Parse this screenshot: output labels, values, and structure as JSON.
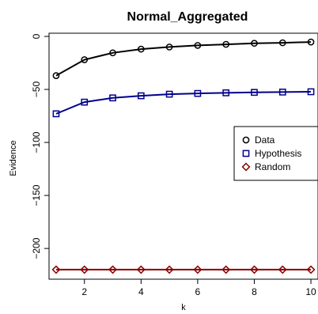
{
  "chart_data": {
    "type": "line",
    "title": "Normal_Aggregated",
    "xlabel": "k",
    "ylabel": "Evidence",
    "x": [
      1,
      2,
      3,
      4,
      5,
      6,
      7,
      8,
      9,
      10
    ],
    "xlim": [
      0.75,
      10.25
    ],
    "ylim": [
      -229,
      3
    ],
    "xticks": [
      2,
      4,
      6,
      8,
      10
    ],
    "yticks": [
      0,
      -50,
      -100,
      -150,
      -200
    ],
    "grid": false,
    "legend_position": "right",
    "series": [
      {
        "name": "Data",
        "marker": "circle",
        "line_color": "#000000",
        "marker_color": "#000000",
        "values": [
          -37,
          -22,
          -15.5,
          -12,
          -10,
          -8.5,
          -7.5,
          -6.5,
          -6,
          -5.3
        ]
      },
      {
        "name": "Hypothesis",
        "marker": "square",
        "line_color": "#00008b",
        "marker_color": "#00008b",
        "values": [
          -73,
          -62,
          -58,
          -56,
          -54.5,
          -53.8,
          -53.2,
          -52.8,
          -52.5,
          -52.2
        ]
      },
      {
        "name": "Random",
        "marker": "diamond",
        "line_color": "#8b0000",
        "marker_color": "#8b0000",
        "values": [
          -220,
          -220,
          -220,
          -220,
          -220,
          -220,
          -220,
          -220,
          -220,
          -220
        ]
      }
    ]
  }
}
